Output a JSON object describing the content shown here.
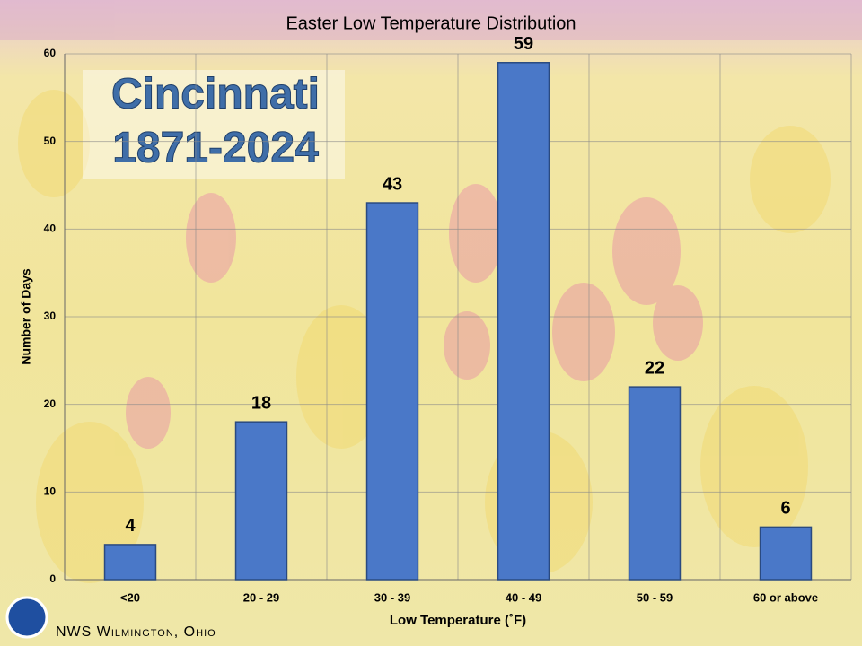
{
  "chart_data": {
    "type": "bar",
    "title": "Easter Low Temperature Distribution",
    "annotations": [
      "Cincinnati",
      "1871-2024"
    ],
    "source": "NWS Wilmington, Ohio",
    "x_label": "Low Temperature (˚F)",
    "y_label": "Number of Days",
    "categories": [
      "<20",
      "20 - 29",
      "30 - 39",
      "40 - 49",
      "50 - 59",
      "60 or above"
    ],
    "values": [
      4,
      18,
      43,
      59,
      22,
      6
    ],
    "color": "#4a78c8",
    "ylim": [
      0,
      60
    ],
    "yticks": [
      0,
      10,
      20,
      30,
      40,
      50,
      60
    ],
    "grid": true
  }
}
